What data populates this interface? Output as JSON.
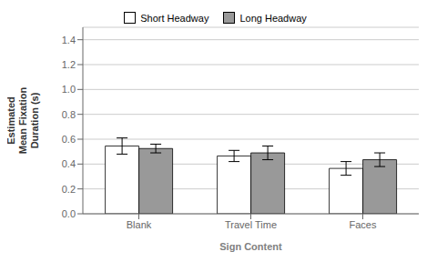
{
  "chart_data": {
    "type": "bar",
    "categories": [
      "Blank",
      "Travel Time",
      "Faces"
    ],
    "series": [
      {
        "name": "Short Headway",
        "color": "#ffffff",
        "values": [
          0.545,
          0.465,
          0.365
        ],
        "error_low": [
          0.065,
          0.045,
          0.055
        ],
        "error_high": [
          0.065,
          0.045,
          0.055
        ]
      },
      {
        "name": "Long Headway",
        "color": "#999999",
        "values": [
          0.525,
          0.49,
          0.435
        ],
        "error_low": [
          0.035,
          0.055,
          0.055
        ],
        "error_high": [
          0.035,
          0.055,
          0.055
        ]
      }
    ],
    "xlabel": "Sign Content",
    "ylabel": "Estimated\nMean Fixation\nDuration (s)",
    "ylim": [
      0.0,
      1.5
    ],
    "yticks": [
      {
        "value": 0,
        "label": "0.0"
      },
      0.2,
      0.4,
      0.6,
      0.8,
      {
        "value": 1,
        "label": "1.0"
      },
      1.2,
      1.4
    ],
    "grid": true,
    "legend": "top"
  }
}
